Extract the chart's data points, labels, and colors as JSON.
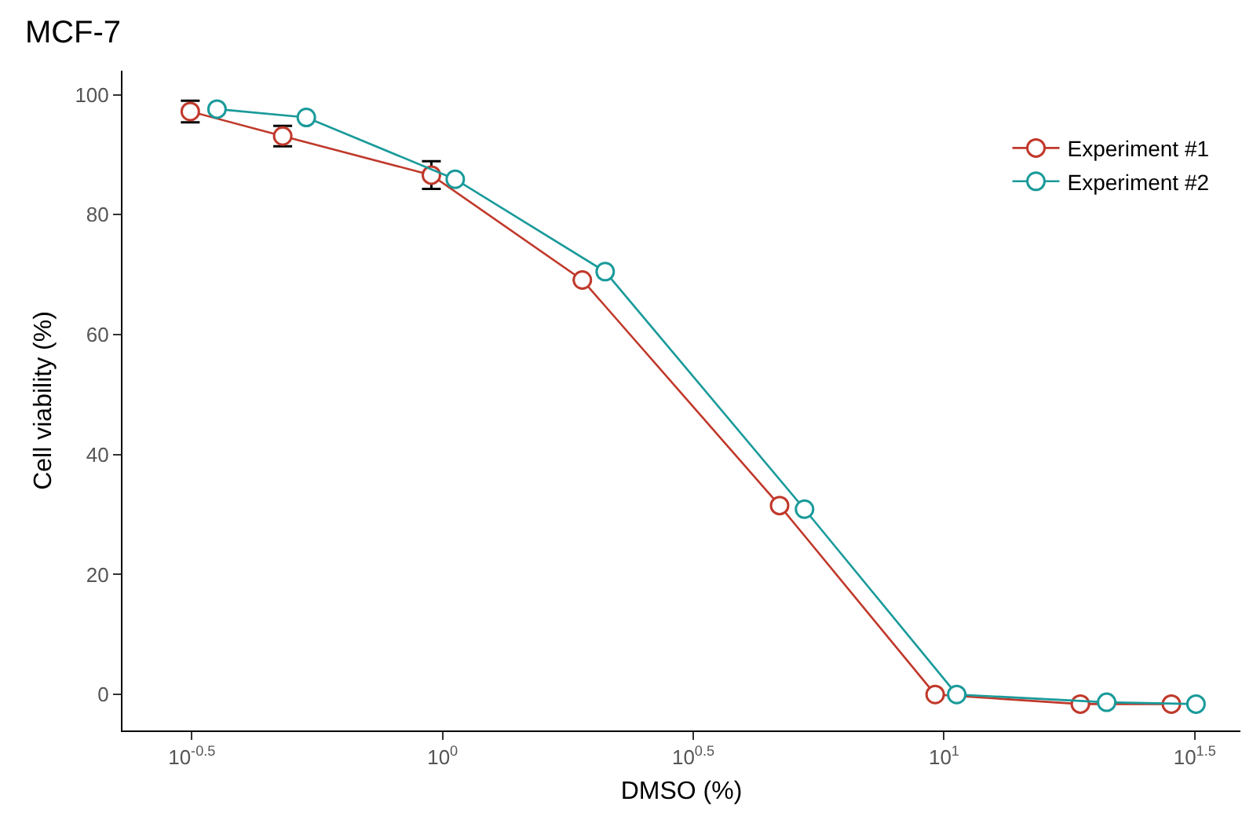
{
  "chart_data": {
    "type": "line",
    "title": "MCF-7",
    "xlabel": "DMSO (%)",
    "ylabel": "Cell viability (%)",
    "log": "x",
    "xlim": [
      0.23,
      39
    ],
    "ylim": [
      -6,
      104
    ],
    "xticks": [
      {
        "value": 0.3162,
        "label": "10$^{-0.5}$"
      },
      {
        "value": 1,
        "label": "10$^{0}$"
      },
      {
        "value": 3.162,
        "label": "10$^{0.5}$"
      },
      {
        "value": 10,
        "label": "10$^{1}$"
      },
      {
        "value": 31.62,
        "label": "10$^{1.5}$"
      }
    ],
    "yticks": [
      0,
      20,
      40,
      60,
      80,
      100
    ],
    "grid": false,
    "legend": "top right",
    "marker": "circle",
    "line_style": "solid",
    "series": [
      {
        "name": "Experiment #1",
        "color": "#c0392b",
        "x": [
          0.314,
          0.48,
          0.95,
          1.9,
          4.7,
          9.6,
          18.7,
          28.4
        ],
        "values": [
          97.2,
          93.1,
          86.6,
          69.1,
          31.5,
          0,
          -1.6,
          -1.6
        ],
        "errors": [
          1.8,
          1.7,
          2.3,
          null,
          null,
          null,
          null,
          null
        ]
      },
      {
        "name": "Experiment #2",
        "color": "#1a9a9a",
        "x": [
          0.355,
          0.535,
          1.06,
          2.11,
          5.27,
          10.6,
          21.1,
          31.8
        ],
        "values": [
          97.6,
          96.2,
          85.9,
          70.5,
          30.9,
          0,
          -1.3,
          -1.6
        ]
      }
    ]
  }
}
